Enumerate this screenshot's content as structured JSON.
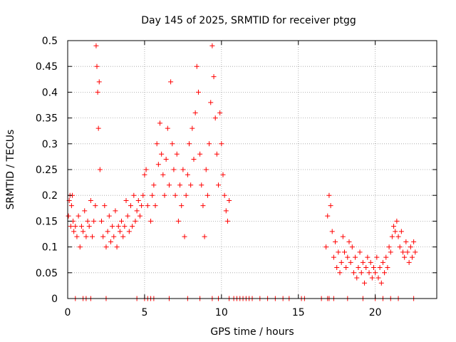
{
  "chart_data": {
    "type": "scatter",
    "title": "Day 145 of 2025, SRMTID for receiver ptgg",
    "xlabel": "GPS time / hours",
    "ylabel": "SRMTID / TECUs",
    "xlim": [
      0,
      24
    ],
    "ylim": [
      0,
      0.5
    ],
    "x_ticks": [
      0,
      5,
      10,
      15,
      20
    ],
    "x_tick_labels": [
      "0",
      "5",
      "10",
      "15",
      "20"
    ],
    "y_ticks": [
      0,
      0.05,
      0.1,
      0.15,
      0.2,
      0.25,
      0.3,
      0.35,
      0.4,
      0.45,
      0.5
    ],
    "y_tick_labels": [
      "0",
      "0.05",
      "0.1",
      "0.15",
      "0.2",
      "0.25",
      "0.3",
      "0.35",
      "0.4",
      "0.45",
      "0.5"
    ],
    "grid": true,
    "marker": "+",
    "colors": {
      "points": "#ff0000",
      "grid": "#a0a0a0",
      "axis": "#000000"
    },
    "series": [
      {
        "name": "SRMTID",
        "points": [
          [
            0.05,
            0.16
          ],
          [
            0.1,
            0.19
          ],
          [
            0.15,
            0.2
          ],
          [
            0.2,
            0.14
          ],
          [
            0.25,
            0.18
          ],
          [
            0.3,
            0.2
          ],
          [
            0.35,
            0.15
          ],
          [
            0.4,
            0.13
          ],
          [
            0.5,
            0.14
          ],
          [
            0.6,
            0.12
          ],
          [
            0.7,
            0.16
          ],
          [
            0.8,
            0.1
          ],
          [
            0.9,
            0.14
          ],
          [
            1.0,
            0.13
          ],
          [
            1.1,
            0.17
          ],
          [
            1.2,
            0.12
          ],
          [
            1.3,
            0.15
          ],
          [
            1.4,
            0.14
          ],
          [
            1.5,
            0.19
          ],
          [
            1.6,
            0.12
          ],
          [
            1.7,
            0.15
          ],
          [
            1.8,
            0.18
          ],
          [
            1.85,
            0.49
          ],
          [
            1.9,
            0.45
          ],
          [
            1.95,
            0.4
          ],
          [
            2.0,
            0.33
          ],
          [
            2.05,
            0.42
          ],
          [
            2.1,
            0.25
          ],
          [
            2.2,
            0.15
          ],
          [
            2.3,
            0.12
          ],
          [
            2.4,
            0.18
          ],
          [
            2.5,
            0.1
          ],
          [
            2.6,
            0.13
          ],
          [
            2.7,
            0.16
          ],
          [
            2.8,
            0.11
          ],
          [
            2.9,
            0.14
          ],
          [
            3.0,
            0.12
          ],
          [
            3.1,
            0.17
          ],
          [
            3.2,
            0.1
          ],
          [
            3.3,
            0.14
          ],
          [
            3.4,
            0.13
          ],
          [
            3.5,
            0.15
          ],
          [
            3.6,
            0.12
          ],
          [
            3.7,
            0.14
          ],
          [
            3.8,
            0.19
          ],
          [
            3.9,
            0.16
          ],
          [
            4.0,
            0.13
          ],
          [
            4.1,
            0.18
          ],
          [
            4.2,
            0.14
          ],
          [
            4.3,
            0.2
          ],
          [
            4.4,
            0.15
          ],
          [
            4.5,
            0.17
          ],
          [
            4.6,
            0.19
          ],
          [
            4.7,
            0.16
          ],
          [
            4.8,
            0.18
          ],
          [
            4.9,
            0.2
          ],
          [
            5.0,
            0.24
          ],
          [
            5.1,
            0.25
          ],
          [
            5.2,
            0.18
          ],
          [
            5.4,
            0.15
          ],
          [
            5.5,
            0.2
          ],
          [
            5.6,
            0.22
          ],
          [
            5.7,
            0.18
          ],
          [
            5.8,
            0.3
          ],
          [
            5.9,
            0.26
          ],
          [
            6.0,
            0.34
          ],
          [
            6.1,
            0.28
          ],
          [
            6.2,
            0.24
          ],
          [
            6.3,
            0.2
          ],
          [
            6.4,
            0.27
          ],
          [
            6.5,
            0.33
          ],
          [
            6.6,
            0.22
          ],
          [
            6.7,
            0.42
          ],
          [
            6.8,
            0.3
          ],
          [
            6.9,
            0.25
          ],
          [
            7.0,
            0.2
          ],
          [
            7.1,
            0.28
          ],
          [
            7.2,
            0.15
          ],
          [
            7.3,
            0.22
          ],
          [
            7.4,
            0.18
          ],
          [
            7.5,
            0.25
          ],
          [
            7.6,
            0.12
          ],
          [
            7.7,
            0.2
          ],
          [
            7.8,
            0.24
          ],
          [
            7.9,
            0.3
          ],
          [
            8.0,
            0.22
          ],
          [
            8.1,
            0.33
          ],
          [
            8.2,
            0.27
          ],
          [
            8.3,
            0.36
          ],
          [
            8.4,
            0.45
          ],
          [
            8.5,
            0.4
          ],
          [
            8.6,
            0.28
          ],
          [
            8.7,
            0.22
          ],
          [
            8.8,
            0.18
          ],
          [
            8.9,
            0.12
          ],
          [
            9.0,
            0.25
          ],
          [
            9.1,
            0.2
          ],
          [
            9.2,
            0.3
          ],
          [
            9.3,
            0.38
          ],
          [
            9.4,
            0.49
          ],
          [
            9.5,
            0.43
          ],
          [
            9.6,
            0.35
          ],
          [
            9.7,
            0.28
          ],
          [
            9.8,
            0.22
          ],
          [
            9.9,
            0.36
          ],
          [
            10.0,
            0.3
          ],
          [
            10.1,
            0.24
          ],
          [
            10.2,
            0.2
          ],
          [
            10.3,
            0.17
          ],
          [
            10.4,
            0.15
          ],
          [
            10.5,
            0.19
          ],
          [
            16.8,
            0.1
          ],
          [
            16.9,
            0.16
          ],
          [
            17.0,
            0.2
          ],
          [
            17.1,
            0.18
          ],
          [
            17.2,
            0.13
          ],
          [
            17.3,
            0.08
          ],
          [
            17.4,
            0.11
          ],
          [
            17.5,
            0.06
          ],
          [
            17.6,
            0.09
          ],
          [
            17.7,
            0.05
          ],
          [
            17.8,
            0.07
          ],
          [
            17.9,
            0.12
          ],
          [
            18.0,
            0.09
          ],
          [
            18.1,
            0.06
          ],
          [
            18.2,
            0.08
          ],
          [
            18.3,
            0.11
          ],
          [
            18.4,
            0.07
          ],
          [
            18.5,
            0.1
          ],
          [
            18.6,
            0.05
          ],
          [
            18.7,
            0.08
          ],
          [
            18.8,
            0.04
          ],
          [
            18.9,
            0.06
          ],
          [
            19.0,
            0.09
          ],
          [
            19.1,
            0.05
          ],
          [
            19.2,
            0.07
          ],
          [
            19.3,
            0.03
          ],
          [
            19.4,
            0.06
          ],
          [
            19.5,
            0.08
          ],
          [
            19.6,
            0.05
          ],
          [
            19.7,
            0.07
          ],
          [
            19.8,
            0.04
          ],
          [
            19.9,
            0.06
          ],
          [
            20.0,
            0.05
          ],
          [
            20.1,
            0.08
          ],
          [
            20.2,
            0.04
          ],
          [
            20.3,
            0.06
          ],
          [
            20.4,
            0.03
          ],
          [
            20.5,
            0.07
          ],
          [
            20.6,
            0.05
          ],
          [
            20.7,
            0.08
          ],
          [
            20.8,
            0.06
          ],
          [
            20.9,
            0.1
          ],
          [
            21.0,
            0.09
          ],
          [
            21.1,
            0.12
          ],
          [
            21.2,
            0.14
          ],
          [
            21.3,
            0.13
          ],
          [
            21.4,
            0.15
          ],
          [
            21.5,
            0.12
          ],
          [
            21.6,
            0.1
          ],
          [
            21.7,
            0.13
          ],
          [
            21.8,
            0.09
          ],
          [
            21.9,
            0.08
          ],
          [
            22.0,
            0.11
          ],
          [
            22.1,
            0.09
          ],
          [
            22.2,
            0.07
          ],
          [
            22.3,
            0.1
          ],
          [
            22.4,
            0.08
          ],
          [
            22.5,
            0.11
          ],
          [
            22.6,
            0.09
          ]
        ]
      }
    ],
    "zero_markers_x": [
      0.5,
      1.0,
      1.2,
      1.5,
      2.5,
      4.5,
      5.0,
      5.2,
      5.4,
      5.6,
      6.6,
      7.8,
      8.6,
      9.4,
      9.8,
      10.5,
      10.8,
      11.0,
      11.2,
      11.4,
      11.6,
      11.8,
      12.0,
      12.5,
      13.0,
      13.5,
      14.0,
      14.4,
      15.2,
      15.4,
      16.5,
      16.9,
      17.0,
      17.3,
      18.2,
      19.2,
      20.0,
      20.5,
      21.0,
      21.5,
      22.5
    ]
  }
}
